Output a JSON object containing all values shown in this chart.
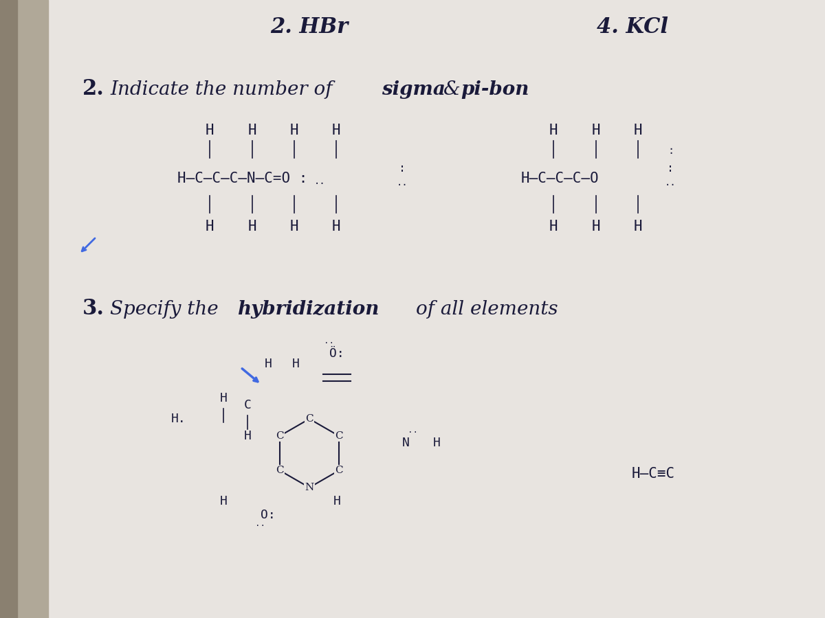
{
  "bg_color": "#e8e4e0",
  "left_shadow_color": "#b0a898",
  "text_color": "#1a1a3a",
  "title1": "2. HBr",
  "title2": "4. KCl",
  "section2_title": "2. Indicate the number of sigma & pi-bon",
  "section3_title": "3. Specify the hybridization of all elements",
  "molecule1_lines": [
    "H  H  H  H",
    "|    |    |    |",
    "H–C–C–C–N–C=O :",
    "|    |    |    ··  |   ··",
    "H  H  H      H"
  ],
  "molecule2_partial": "H–C–C–C–O",
  "hcec_text": "H–C≡C",
  "bottom_molecule_text": "Ö:",
  "font_size_titles": 22,
  "font_size_section": 20,
  "font_size_molecule": 18
}
